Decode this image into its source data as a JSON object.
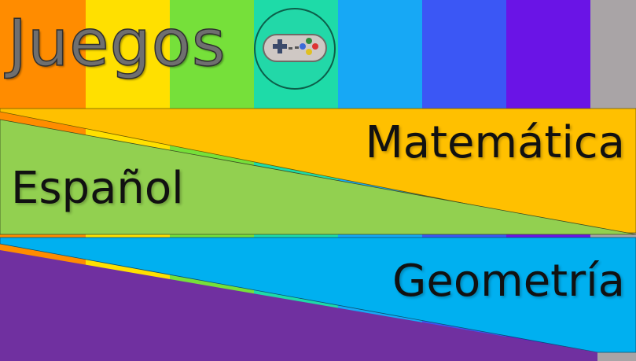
{
  "header": {
    "title": "Juegos",
    "gamepad_icon": "gamepad-icon"
  },
  "stripe_colors": [
    "#ff8c00",
    "#ffe000",
    "#76e03a",
    "#1edba8",
    "#17a8f5",
    "#3b57f5",
    "#6a14e6",
    "#a9a4a6"
  ],
  "cards": {
    "matematica": {
      "label": "Matemática",
      "color": "#ffc000"
    },
    "espanol": {
      "label": "Español",
      "color": "#92d050"
    },
    "geometria": {
      "label": "Geometría",
      "color": "#00b0f0"
    },
    "bottom_band_color": "#7030a0"
  }
}
